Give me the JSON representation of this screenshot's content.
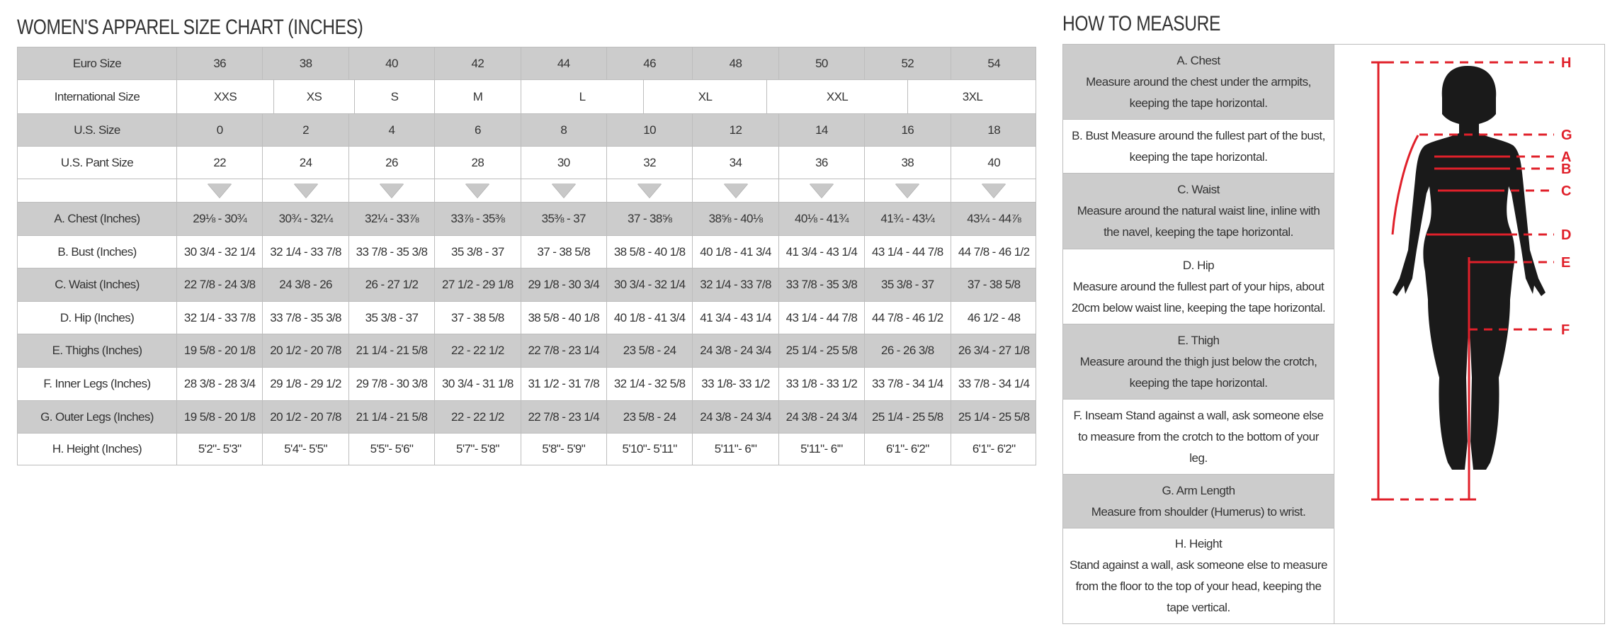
{
  "chart_title": "WOMEN'S APPAREL SIZE CHART (INCHES)",
  "measure_title": "HOW TO MEASURE",
  "size_table": {
    "rows": [
      {
        "label": "Euro Size",
        "gray": true,
        "values": [
          "36",
          "38",
          "40",
          "42",
          "44",
          "46",
          "48",
          "50",
          "52",
          "54"
        ]
      },
      {
        "label": "International Size",
        "gray": false,
        "spans": [
          "XXS",
          "XS",
          "S",
          "M",
          "L",
          "XL",
          "XXL",
          "3XL"
        ]
      },
      {
        "label": "U.S. Size",
        "gray": true,
        "values": [
          "0",
          "2",
          "4",
          "6",
          "8",
          "10",
          "12",
          "14",
          "16",
          "18"
        ]
      },
      {
        "label": "U.S. Pant Size",
        "gray": false,
        "values": [
          "22",
          "24",
          "26",
          "28",
          "30",
          "32",
          "34",
          "36",
          "38",
          "40"
        ]
      },
      {
        "label": "",
        "gray": false,
        "arrows": true
      },
      {
        "label": "A. Chest (Inches)",
        "gray": true,
        "values": [
          "29⅛ - 30¾",
          "30¾ - 32¼",
          "32¼ - 33⅞",
          "33⅞ - 35⅜",
          "35⅜ - 37",
          "37 - 38⅝",
          "38⅝ - 40⅛",
          "40⅛ - 41¾",
          "41¾ - 43¼",
          "43¼ - 44⅞"
        ]
      },
      {
        "label": "B. Bust (Inches)",
        "gray": false,
        "values": [
          "30 3/4 - 32 1/4",
          "32 1/4 - 33 7/8",
          "33 7/8 - 35 3/8",
          "35 3/8 - 37",
          "37 - 38 5/8",
          "38 5/8 - 40 1/8",
          "40 1/8 - 41 3/4",
          "41 3/4 - 43 1/4",
          "43 1/4 - 44 7/8",
          "44 7/8 - 46 1/2"
        ]
      },
      {
        "label": "C. Waist (Inches)",
        "gray": true,
        "values": [
          "22 7/8 - 24 3/8",
          "24 3/8 - 26",
          "26 - 27 1/2",
          "27 1/2 - 29 1/8",
          "29 1/8 - 30 3/4",
          "30 3/4 - 32 1/4",
          "32 1/4 - 33 7/8",
          "33 7/8 - 35 3/8",
          "35 3/8 - 37",
          "37 - 38 5/8"
        ]
      },
      {
        "label": "D. Hip (Inches)",
        "gray": false,
        "values": [
          "32 1/4 - 33 7/8",
          "33 7/8 - 35 3/8",
          "35 3/8 - 37",
          "37 - 38 5/8",
          "38 5/8 - 40 1/8",
          "40 1/8 - 41 3/4",
          "41 3/4 - 43 1/4",
          "43 1/4 - 44 7/8",
          "44 7/8 - 46 1/2",
          "46 1/2 - 48"
        ]
      },
      {
        "label": "E. Thighs (Inches)",
        "gray": true,
        "values": [
          "19 5/8 - 20 1/8",
          "20 1/2 - 20 7/8",
          "21 1/4 - 21 5/8",
          "22 - 22 1/2",
          "22 7/8 - 23 1/4",
          "23 5/8 - 24",
          "24 3/8 - 24 3/4",
          "25 1/4 - 25 5/8",
          "26 - 26 3/8",
          "26 3/4 - 27 1/8"
        ]
      },
      {
        "label": "F. Inner Legs (Inches)",
        "gray": false,
        "values": [
          "28 3/8 - 28 3/4",
          "29 1/8 - 29 1/2",
          "29 7/8 - 30 3/8",
          "30 3/4 - 31 1/8",
          "31 1/2 - 31 7/8",
          "32 1/4 - 32 5/8",
          "33 1/8- 33 1/2",
          "33 1/8 - 33 1/2",
          "33 7/8 - 34 1/4",
          "33 7/8 - 34 1/4"
        ]
      },
      {
        "label": "G. Outer Legs (Inches)",
        "gray": true,
        "values": [
          "19 5/8 - 20 1/8",
          "20 1/2 - 20 7/8",
          "21 1/4 - 21 5/8",
          "22 - 22 1/2",
          "22 7/8 - 23 1/4",
          "23 5/8 - 24",
          "24 3/8 - 24 3/4",
          "24 3/8 - 24 3/4",
          "25 1/4 - 25 5/8",
          "25 1/4 - 25 5/8"
        ]
      },
      {
        "label": "H. Height (Inches)",
        "gray": false,
        "values": [
          "5'2\"- 5'3\"",
          "5'4\"- 5'5\"",
          "5'5\"- 5'6\"",
          "5'7\"- 5'8\"",
          "5'8\"- 5'9\"",
          "5'10\"- 5'11\"",
          "5'11\"- 6'\"",
          "5'11\"- 6'\"",
          "6'1\"- 6'2\"",
          "6'1\"- 6'2\""
        ]
      }
    ]
  },
  "measure_items": [
    {
      "title": "A. Chest",
      "text": "Measure around the chest under the armpits, keeping the tape horizontal.",
      "gray": true
    },
    {
      "title": "",
      "text": "B. Bust Measure around the fullest part of the bust, keeping the tape horizontal.",
      "gray": false
    },
    {
      "title": "C. Waist",
      "text": "Measure around the natural waist line, inline with the navel, keeping the tape horizontal.",
      "gray": true
    },
    {
      "title": "D. Hip",
      "text": "Measure around the fullest part of your hips, about 20cm below waist line, keeping the tape horizontal.",
      "gray": false
    },
    {
      "title": "E. Thigh",
      "text": "Measure around the thigh just below the crotch, keeping the tape horizontal.",
      "gray": true
    },
    {
      "title": "",
      "text": "F. Inseam Stand against a wall, ask someone else to measure from the crotch to the bottom of your leg.",
      "gray": false
    },
    {
      "title": "G. Arm Length",
      "text": "Measure from shoulder (Humerus) to wrist.",
      "gray": true
    },
    {
      "title": "H. Height",
      "text": "Stand against a wall, ask someone else to measure from the floor to the top of your head, keeping the tape vertical.",
      "gray": false
    }
  ],
  "figure": {
    "labels": [
      "H",
      "G",
      "A",
      "B",
      "C",
      "D",
      "E",
      "F"
    ],
    "line_color": "#e0202a",
    "silhouette_color": "#1a1a1a"
  }
}
